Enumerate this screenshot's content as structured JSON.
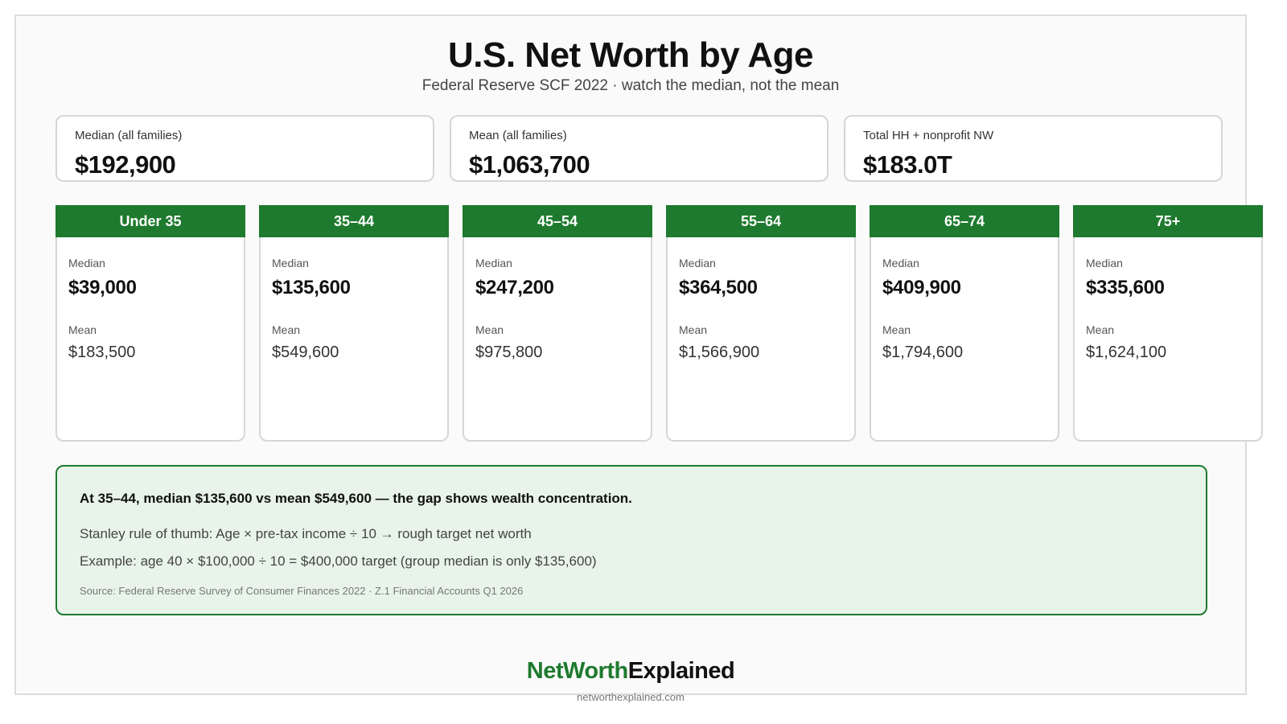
{
  "header": {
    "title": "U.S. Net Worth by Age",
    "subtitle": "Federal Reserve SCF 2022 · watch the median, not the mean"
  },
  "kpis": [
    {
      "label": "Median (all families)",
      "value": "$192,900"
    },
    {
      "label": "Mean (all families)",
      "value": "$1,063,700"
    },
    {
      "label": "Total HH + nonprofit NW",
      "value": "$183.0T"
    }
  ],
  "age_groups": [
    {
      "label": "Under 35",
      "median_label": "Median",
      "median": "$39,000",
      "mean_label": "Mean",
      "mean": "$183,500"
    },
    {
      "label": "35–44",
      "median_label": "Median",
      "median": "$135,600",
      "mean_label": "Mean",
      "mean": "$549,600"
    },
    {
      "label": "45–54",
      "median_label": "Median",
      "median": "$247,200",
      "mean_label": "Mean",
      "mean": "$975,800"
    },
    {
      "label": "55–64",
      "median_label": "Median",
      "median": "$364,500",
      "mean_label": "Mean",
      "mean": "$1,566,900"
    },
    {
      "label": "65–74",
      "median_label": "Median",
      "median": "$409,900",
      "mean_label": "Mean",
      "mean": "$1,794,600"
    },
    {
      "label": "75+",
      "median_label": "Median",
      "median": "$335,600",
      "mean_label": "Mean",
      "mean": "$1,624,100"
    }
  ],
  "note": {
    "headline": "At 35–44, median $135,600 vs mean $549,600 — the gap shows wealth concentration.",
    "line1": "Stanley rule of thumb: Age × pre-tax income ÷ 10  →  rough target net worth",
    "line2": "Example: age 40 × $100,000 ÷ 10 = $400,000 target  (group median is only $135,600)",
    "source": "Source: Federal Reserve Survey of Consumer Finances 2022 · Z.1 Financial Accounts Q1 2026"
  },
  "footer": {
    "brand_green": "NetWorth",
    "brand_dark": "Explained",
    "domain": "networthexplained.com"
  },
  "colors": {
    "accent_green": "#1e7a2e",
    "note_background": "#e8f4ea"
  }
}
